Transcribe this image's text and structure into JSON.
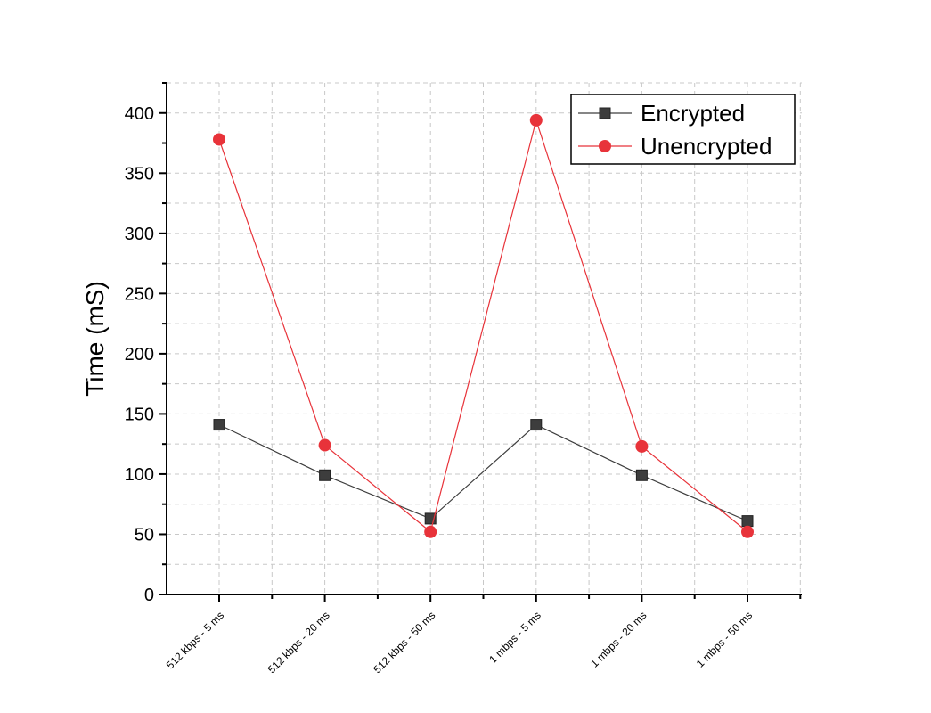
{
  "chart_data": {
    "type": "line",
    "title": "",
    "xlabel": "",
    "ylabel": "Time (mS)",
    "categories": [
      "512 kbps - 5 ms",
      "512 kbps - 20 ms",
      "512 kbps - 50 ms",
      "1 mbps - 5 ms",
      "1 mbps - 20 ms",
      "1 mbps - 50 ms"
    ],
    "ylim": [
      0,
      425
    ],
    "yticks": [
      0,
      50,
      100,
      150,
      200,
      250,
      300,
      350,
      400
    ],
    "grid": true,
    "legend_position": "top-right",
    "series": [
      {
        "name": "Encrypted",
        "values": [
          141,
          99,
          63,
          141,
          99,
          61
        ],
        "color": "#3d3d3d",
        "marker": "square"
      },
      {
        "name": "Unencrypted",
        "values": [
          378,
          124,
          52,
          394,
          123,
          52
        ],
        "color": "#e8333a",
        "marker": "circle"
      }
    ]
  }
}
